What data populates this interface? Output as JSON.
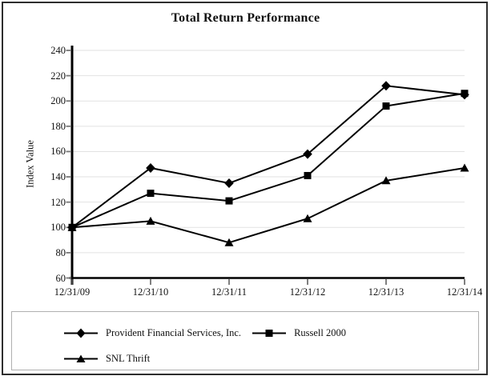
{
  "chart_data": {
    "type": "line",
    "title": "Total Return Performance",
    "xlabel": "",
    "ylabel": "Index Value",
    "categories": [
      "12/31/09",
      "12/31/10",
      "12/31/11",
      "12/31/12",
      "12/31/13",
      "12/31/14"
    ],
    "series": [
      {
        "name": "Provident Financial Services, Inc.",
        "marker": "diamond",
        "values": [
          100,
          147,
          135,
          158,
          212,
          205
        ]
      },
      {
        "name": "Russell 2000",
        "marker": "square",
        "values": [
          100,
          127,
          121,
          141,
          196,
          206
        ]
      },
      {
        "name": "SNL Thrift",
        "marker": "triangle",
        "values": [
          100,
          105,
          88,
          107,
          137,
          147
        ]
      }
    ],
    "ylim": [
      60,
      240
    ],
    "y_ticks": [
      60,
      80,
      100,
      120,
      140,
      160,
      180,
      200,
      220,
      240
    ],
    "grid": "horizontal",
    "legend_position": "bottom-box",
    "colors": {
      "line": "#000000",
      "marker": "#000000",
      "grid": "#e2e2e2",
      "axis": "#000000",
      "tick": "#777777",
      "frame_border": "#2e2e2e",
      "legend_border": "#b0b0b0",
      "background": "#ffffff"
    }
  }
}
